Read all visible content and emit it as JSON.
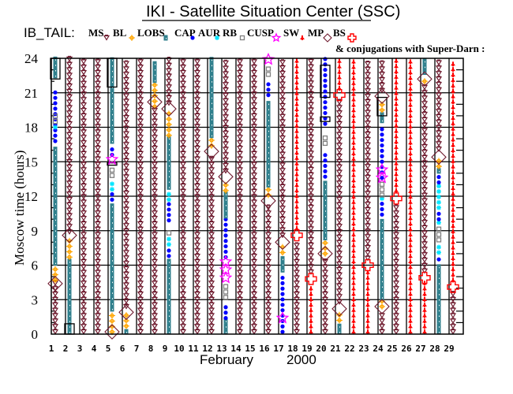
{
  "header": {
    "title": "IKI - Satellite Situation Center (SSC)",
    "satellite_label": "IB_TAIL:",
    "conjugations_note": "& conjugations with Super-Darn :"
  },
  "legend": [
    {
      "code": "MS",
      "label": "MS",
      "symbol": "triangle-down",
      "color": "#6e1a2e"
    },
    {
      "code": "BL",
      "label": "BL",
      "symbol": "sun",
      "color": "#ffa500"
    },
    {
      "code": "LOBS",
      "label": "LOBS",
      "symbol": "filled-square",
      "color": "#2f7f8c"
    },
    {
      "code": "CAP",
      "label": "CAP",
      "symbol": "dot",
      "color": "#0000ff"
    },
    {
      "code": "AUR",
      "label": "AUR",
      "symbol": "asterisk",
      "color": "#00e5ff"
    },
    {
      "code": "RB",
      "label": "RB",
      "symbol": "open-square",
      "color": "#808080"
    },
    {
      "code": "CUSP",
      "label": "CUSP",
      "symbol": "star",
      "color": "#ff00ff"
    },
    {
      "code": "SW",
      "label": "SW",
      "symbol": "arrow",
      "color": "#ff0000"
    },
    {
      "code": "MP",
      "label": "MP",
      "symbol": "diamond",
      "color": "#6e1a2e"
    },
    {
      "code": "BS",
      "label": "BS",
      "symbol": "cross",
      "color": "#ff0000"
    }
  ],
  "chart_data": {
    "type": "scatter",
    "title": "IKI - Satellite Situation Center (SSC)",
    "xlabel_month": "February",
    "xlabel_year": "2000",
    "ylabel": "Moscow time (hours)",
    "xlim": [
      1,
      29
    ],
    "ylim": [
      0,
      24
    ],
    "x_ticks": [
      "1",
      "2",
      "3",
      "4",
      "5",
      "6",
      "7",
      "8",
      "9",
      "10",
      "11",
      "12",
      "13",
      "14",
      "15",
      "16",
      "17",
      "18",
      "19",
      "20",
      "21",
      "22",
      "23",
      "24",
      "25",
      "26",
      "27",
      "28",
      "29"
    ],
    "y_ticks": [
      "0",
      "3",
      "6",
      "9",
      "12",
      "15",
      "18",
      "21",
      "24"
    ],
    "grid": true,
    "days": [
      {
        "day": 1,
        "segments": [
          [
            "MS",
            0,
            4.5
          ],
          [
            "BL",
            4.5,
            6
          ],
          [
            "LOBS",
            6,
            16.4
          ],
          [
            "CAP",
            16.6,
            21.4
          ],
          [
            "LOBS",
            22.3,
            24
          ]
        ],
        "overlays": [
          [
            "RB",
            18.4,
            19.3
          ],
          [
            "AUR",
            17.9,
            18.1
          ]
        ],
        "markers": [
          [
            "MP",
            4.4
          ]
        ],
        "conj": [
          [
            22.2,
            24
          ]
        ]
      },
      {
        "day": 2,
        "segments": [
          [
            "LOBS",
            0,
            6.5
          ],
          [
            "BL",
            6.5,
            8.5
          ],
          [
            "MS",
            8.7,
            24
          ]
        ],
        "overlays": [],
        "markers": [
          [
            "MP",
            8.6
          ]
        ],
        "conj": [
          [
            0,
            0.9
          ]
        ]
      },
      {
        "day": 3,
        "segments": [
          [
            "MS",
            0,
            24
          ]
        ],
        "overlays": [],
        "markers": [],
        "conj": []
      },
      {
        "day": 4,
        "segments": [
          [
            "MS",
            0,
            24
          ]
        ],
        "overlays": [],
        "markers": [],
        "conj": []
      },
      {
        "day": 5,
        "segments": [
          [
            "BL",
            0,
            2
          ],
          [
            "LOBS",
            2,
            11.5
          ],
          [
            "CAP",
            11.5,
            12.4
          ],
          [
            "AUR",
            12.4,
            13.5
          ],
          [
            "RB",
            13.6,
            14.5
          ],
          [
            "CAP",
            15.4,
            16.4
          ],
          [
            "LOBS",
            16.6,
            24
          ]
        ],
        "overlays": [],
        "markers": [
          [
            "MP",
            0.2
          ],
          [
            "CUSP",
            15.2
          ]
        ],
        "conj": [
          [
            21.5,
            24
          ],
          [
            14.7,
            14.9
          ]
        ]
      },
      {
        "day": 6,
        "segments": [
          [
            "LOBS",
            0,
            0.5
          ],
          [
            "BL",
            0.5,
            1.8
          ],
          [
            "MS",
            2.2,
            24
          ]
        ],
        "overlays": [],
        "markers": [
          [
            "MP",
            1.9
          ]
        ],
        "conj": []
      },
      {
        "day": 7,
        "segments": [
          [
            "MS",
            0,
            24
          ]
        ],
        "overlays": [],
        "markers": [],
        "conj": []
      },
      {
        "day": 8,
        "segments": [
          [
            "MS",
            0,
            19.6
          ],
          [
            "BL",
            19.6,
            21.9
          ],
          [
            "LOBS",
            21.9,
            24
          ]
        ],
        "overlays": [],
        "markers": [
          [
            "MP",
            20.2
          ]
        ],
        "conj": []
      },
      {
        "day": 9,
        "segments": [
          [
            "LOBS",
            0,
            6.6
          ],
          [
            "CAP",
            6.6,
            7.6
          ],
          [
            "AUR",
            7.6,
            8.5
          ],
          [
            "RB",
            8.6,
            9.2
          ],
          [
            "CAP",
            9.7,
            11.5
          ],
          [
            "AUR",
            11.5,
            12.6
          ],
          [
            "LOBS",
            12.6,
            17.1
          ],
          [
            "BL",
            17.1,
            19.4
          ],
          [
            "MS",
            19.9,
            24
          ]
        ],
        "overlays": [],
        "markers": [
          [
            "MP",
            19.6
          ]
        ],
        "conj": []
      },
      {
        "day": 10,
        "segments": [
          [
            "MS",
            0,
            24
          ]
        ],
        "overlays": [],
        "markers": [],
        "conj": []
      },
      {
        "day": 11,
        "segments": [
          [
            "MS",
            0,
            24
          ]
        ],
        "overlays": [],
        "markers": [],
        "conj": []
      },
      {
        "day": 12,
        "segments": [
          [
            "MS",
            0,
            15.5
          ],
          [
            "BL",
            16.2,
            17.1
          ],
          [
            "LOBS",
            17.1,
            24
          ]
        ],
        "overlays": [],
        "markers": [
          [
            "MP",
            15.9
          ]
        ],
        "conj": []
      },
      {
        "day": 13,
        "segments": [
          [
            "LOBS",
            0,
            1.2
          ],
          [
            "CAP",
            1.2,
            2.8
          ],
          [
            "AUR",
            2.8,
            3.0
          ],
          [
            "RB",
            3.0,
            4.5
          ],
          [
            "AUR",
            4.5,
            4.7
          ],
          [
            "CAP",
            6.5,
            10.1
          ],
          [
            "LOBS",
            10.1,
            12.3
          ],
          [
            "BL",
            12.3,
            13.4
          ],
          [
            "MS",
            14.0,
            24
          ]
        ],
        "overlays": [],
        "markers": [
          [
            "CUSP",
            4.9
          ],
          [
            "CUSP",
            5.6
          ],
          [
            "CUSP",
            6.3
          ],
          [
            "MP",
            13.7
          ]
        ],
        "conj": []
      },
      {
        "day": 14,
        "segments": [
          [
            "MS",
            0,
            24
          ]
        ],
        "overlays": [],
        "markers": [],
        "conj": []
      },
      {
        "day": 15,
        "segments": [
          [
            "MS",
            0,
            24
          ]
        ],
        "overlays": [],
        "markers": [],
        "conj": []
      },
      {
        "day": 16,
        "segments": [
          [
            "MS",
            0,
            11.2
          ],
          [
            "BL",
            11.9,
            12.8
          ],
          [
            "LOBS",
            12.8,
            20.4
          ],
          [
            "CAP",
            20.6,
            22.0
          ],
          [
            "AUR",
            22.1,
            22.3
          ],
          [
            "RB",
            22.4,
            23.4
          ],
          [
            "AUR",
            23.4,
            23.6
          ]
        ],
        "overlays": [],
        "markers": [
          [
            "MP",
            11.6
          ],
          [
            "CUSP",
            23.9
          ]
        ],
        "conj": []
      },
      {
        "day": 17,
        "segments": [
          [
            "CAP",
            0,
            5.4
          ],
          [
            "LOBS",
            5.4,
            6.9
          ],
          [
            "BL",
            6.9,
            7.8
          ],
          [
            "MS",
            8.4,
            24
          ]
        ],
        "overlays": [],
        "markers": [
          [
            "CUSP",
            1.4
          ],
          [
            "MP",
            8.0
          ]
        ],
        "conj": []
      },
      {
        "day": 18,
        "segments": [
          [
            "MS",
            0,
            8.2
          ],
          [
            "SW",
            9.0,
            24
          ]
        ],
        "overlays": [],
        "markers": [
          [
            "BS",
            8.6
          ]
        ],
        "conj": []
      },
      {
        "day": 19,
        "segments": [
          [
            "SW",
            0,
            4.4
          ],
          [
            "MS",
            5.2,
            24
          ]
        ],
        "overlays": [],
        "markers": [
          [
            "BS",
            4.8
          ]
        ],
        "conj": []
      },
      {
        "day": 20,
        "segments": [
          [
            "MS",
            0,
            6.6
          ],
          [
            "BL",
            6.8,
            8.0
          ],
          [
            "LOBS",
            8.2,
            13.3
          ],
          [
            "CAP",
            13.5,
            16.0
          ],
          [
            "AUR",
            16.2,
            16.4
          ],
          [
            "RB",
            16.4,
            17.5
          ],
          [
            "AUR",
            17.7,
            17.9
          ],
          [
            "CAP",
            18.1,
            24
          ]
        ],
        "overlays": [],
        "markers": [
          [
            "MP",
            7.0
          ]
        ],
        "conj": [
          [
            20.6,
            23.4
          ],
          [
            18.5,
            18.9
          ]
        ]
      },
      {
        "day": 21,
        "segments": [
          [
            "LOBS",
            0,
            1
          ],
          [
            "BL",
            1,
            2
          ],
          [
            "MS",
            2.6,
            20.3
          ],
          [
            "SW",
            21.2,
            24
          ]
        ],
        "overlays": [],
        "markers": [
          [
            "MP",
            2.2
          ],
          [
            "BS",
            20.8
          ]
        ],
        "conj": []
      },
      {
        "day": 22,
        "segments": [
          [
            "SW",
            0,
            24
          ]
        ],
        "overlays": [],
        "markers": [],
        "conj": []
      },
      {
        "day": 23,
        "segments": [
          [
            "SW",
            0,
            5.6
          ],
          [
            "MS",
            6.4,
            24
          ]
        ],
        "overlays": [],
        "markers": [
          [
            "BS",
            6.0
          ]
        ],
        "conj": []
      },
      {
        "day": 24,
        "segments": [
          [
            "MS",
            0,
            2.0
          ],
          [
            "BL",
            2.2,
            3.0
          ],
          [
            "LOBS",
            3.0,
            10.2
          ],
          [
            "CAP",
            10.2,
            11.5
          ],
          [
            "AUR",
            11.6,
            11.9
          ],
          [
            "RB",
            11.9,
            13.2
          ],
          [
            "CAP",
            13.4,
            18.3
          ],
          [
            "LOBS",
            18.4,
            19.2
          ],
          [
            "BL",
            19.3,
            20.3
          ],
          [
            "MS",
            21.0,
            24
          ]
        ],
        "overlays": [],
        "markers": [
          [
            "MP",
            2.4
          ],
          [
            "CUSP",
            13.6
          ],
          [
            "CUSP",
            14.3
          ],
          [
            "MP",
            20.7
          ]
        ],
        "conj": [
          [
            19.0,
            20.6
          ]
        ]
      },
      {
        "day": 25,
        "segments": [
          [
            "MS",
            0,
            11.4
          ],
          [
            "SW",
            12.3,
            24
          ]
        ],
        "overlays": [],
        "markers": [
          [
            "BS",
            11.8
          ]
        ],
        "conj": []
      },
      {
        "day": 26,
        "segments": [
          [
            "SW",
            0,
            24
          ]
        ],
        "overlays": [],
        "markers": [],
        "conj": []
      },
      {
        "day": 27,
        "segments": [
          [
            "SW",
            0,
            4.5
          ],
          [
            "MS",
            5.3,
            21.6
          ],
          [
            "BL",
            21.8,
            22.5
          ],
          [
            "LOBS",
            22.6,
            24
          ]
        ],
        "overlays": [],
        "markers": [
          [
            "BS",
            4.9
          ],
          [
            "MP",
            22.2
          ]
        ],
        "conj": []
      },
      {
        "day": 28,
        "segments": [
          [
            "LOBS",
            0,
            6.3
          ],
          [
            "CAP",
            6.3,
            6.8
          ],
          [
            "AUR",
            6.9,
            8.0
          ],
          [
            "RB",
            8.0,
            9.3
          ],
          [
            "AUR",
            9.5,
            9.8
          ],
          [
            "CAP",
            9.8,
            10.8
          ],
          [
            "AUR",
            10.8,
            13.0
          ],
          [
            "CAP",
            13.0,
            13.9
          ],
          [
            "LOBS",
            14.0,
            14.3
          ],
          [
            "BL",
            14.4,
            15.4
          ],
          [
            "MS",
            15.9,
            24
          ]
        ],
        "overlays": [],
        "markers": [
          [
            "MP",
            15.4
          ]
        ],
        "conj": []
      },
      {
        "day": 29,
        "segments": [
          [
            "MS",
            0,
            3.7
          ],
          [
            "SW",
            4.5,
            24
          ]
        ],
        "overlays": [],
        "markers": [
          [
            "BS",
            4.1
          ]
        ],
        "conj": []
      }
    ]
  }
}
